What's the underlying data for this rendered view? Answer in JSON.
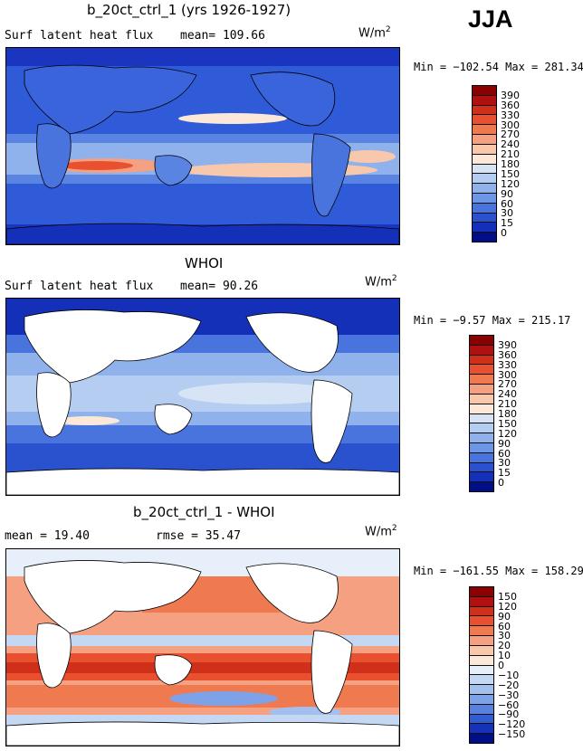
{
  "season": "JJA",
  "units_base": "W/m",
  "units_exp": "2",
  "panels": [
    {
      "title": "b_20ct_ctrl_1 (yrs 1926-1927)",
      "left_label": "Surf latent heat flux",
      "mean_label": "mean=",
      "mean_value": "109.66",
      "minmax": "Min = −102.54  Max = 281.34",
      "colorbar_labels": [
        "390",
        "360",
        "330",
        "300",
        "270",
        "240",
        "210",
        "180",
        "150",
        "120",
        "90",
        "60",
        "30",
        "15",
        "0"
      ],
      "colorbar_colors": [
        "#8b0000",
        "#b01010",
        "#d0301a",
        "#e85030",
        "#f07a50",
        "#f5a080",
        "#f8c8ac",
        "#fbe8d8",
        "#d6e4f5",
        "#b5cdf0",
        "#8fb1ec",
        "#6d96e6",
        "#4a74dd",
        "#2a52cf",
        "#1530b8",
        "#000e87"
      ]
    },
    {
      "title": "WHOI",
      "left_label": "Surf latent heat flux",
      "mean_label": "mean=",
      "mean_value": "90.26",
      "minmax": "Min =   −9.57  Max = 215.17",
      "colorbar_labels": [
        "390",
        "360",
        "330",
        "300",
        "270",
        "240",
        "210",
        "180",
        "150",
        "120",
        "90",
        "60",
        "30",
        "15",
        "0"
      ],
      "colorbar_colors": [
        "#8b0000",
        "#b01010",
        "#d0301a",
        "#e85030",
        "#f07a50",
        "#f5a080",
        "#f8c8ac",
        "#fbe8d8",
        "#d6e4f5",
        "#b5cdf0",
        "#8fb1ec",
        "#6d96e6",
        "#4a74dd",
        "#2a52cf",
        "#1530b8",
        "#000e87"
      ]
    },
    {
      "title": "b_20ct_ctrl_1 - WHOI",
      "left_label": "mean =  19.40",
      "mean_label": "rmse =",
      "mean_value": "35.47",
      "minmax": "Min = −161.55  Max = 158.29",
      "colorbar_labels": [
        "150",
        "120",
        "90",
        "60",
        "30",
        "20",
        "10",
        "0",
        "−10",
        "−20",
        "−30",
        "−60",
        "−90",
        "−120",
        "−150"
      ],
      "colorbar_colors": [
        "#8b0000",
        "#b01010",
        "#d0301a",
        "#e85030",
        "#f07a50",
        "#f5a080",
        "#f8c8ac",
        "#fbe8d8",
        "#e6effa",
        "#c5d8f3",
        "#a3bfee",
        "#7ea2e8",
        "#5880e0",
        "#345cd2",
        "#1632b8",
        "#000e87"
      ]
    }
  ]
}
